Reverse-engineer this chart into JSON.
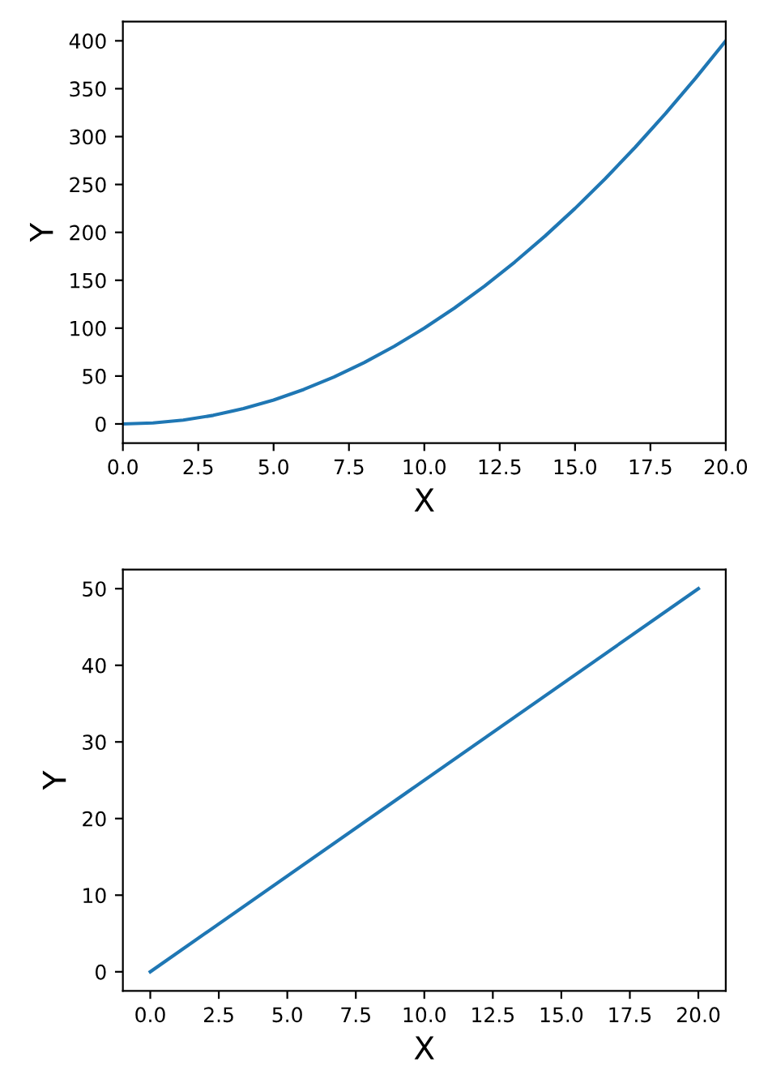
{
  "chart_data": [
    {
      "type": "line",
      "xlabel": "X",
      "ylabel": "Y",
      "x": [
        0,
        1,
        2,
        3,
        4,
        5,
        6,
        7,
        8,
        9,
        10,
        11,
        12,
        13,
        14,
        15,
        16,
        17,
        18,
        19,
        20
      ],
      "series": [
        {
          "color": "#1f77b4",
          "values": [
            0,
            1,
            4,
            9,
            16,
            25,
            36,
            49,
            64,
            81,
            100,
            121,
            144,
            169,
            196,
            225,
            256,
            289,
            324,
            361,
            400
          ]
        }
      ],
      "xlim": [
        0,
        20
      ],
      "ylim": [
        -20,
        420
      ],
      "xticks": [
        {
          "value": 0,
          "label": "0.0"
        },
        {
          "value": 2.5,
          "label": "2.5"
        },
        {
          "value": 5,
          "label": "5.0"
        },
        {
          "value": 7.5,
          "label": "7.5"
        },
        {
          "value": 10,
          "label": "10.0"
        },
        {
          "value": 12.5,
          "label": "12.5"
        },
        {
          "value": 15,
          "label": "15.0"
        },
        {
          "value": 17.5,
          "label": "17.5"
        },
        {
          "value": 20,
          "label": "20.0"
        }
      ],
      "yticks": [
        0,
        50,
        100,
        150,
        200,
        250,
        300,
        350,
        400
      ]
    },
    {
      "type": "line",
      "xlabel": "X",
      "ylabel": "Y",
      "x": [
        0,
        20
      ],
      "series": [
        {
          "color": "#1f77b4",
          "values": [
            0,
            50
          ]
        }
      ],
      "xlim": [
        -1,
        21
      ],
      "ylim": [
        -2.5,
        52.5
      ],
      "xticks": [
        {
          "value": 0,
          "label": "0.0"
        },
        {
          "value": 2.5,
          "label": "2.5"
        },
        {
          "value": 5,
          "label": "5.0"
        },
        {
          "value": 7.5,
          "label": "7.5"
        },
        {
          "value": 10,
          "label": "10.0"
        },
        {
          "value": 12.5,
          "label": "12.5"
        },
        {
          "value": 15,
          "label": "15.0"
        },
        {
          "value": 17.5,
          "label": "17.5"
        },
        {
          "value": 20,
          "label": "20.0"
        }
      ],
      "yticks": [
        0,
        10,
        20,
        30,
        40,
        50
      ]
    }
  ]
}
